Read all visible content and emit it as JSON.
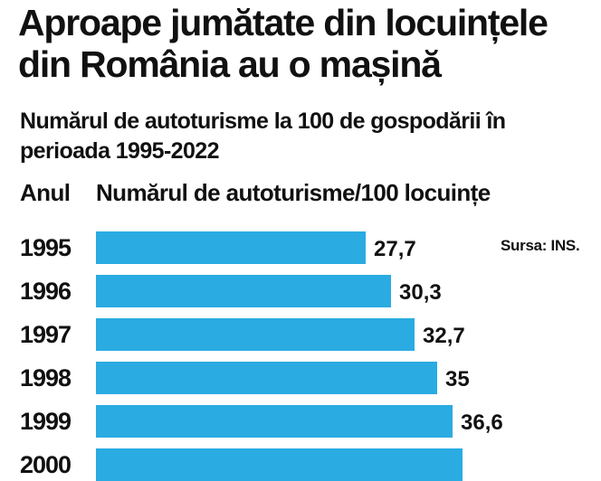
{
  "chart_data": {
    "type": "bar",
    "orientation": "horizontal",
    "title": "Aproape jumătate din locuințele din România au o mașină",
    "subtitle": "Numărul de autoturisme la 100 de gospodării în perioada 1995-2022",
    "category_header": "Anul",
    "value_header": "Numărul de autoturisme/100 locuințe",
    "source": "Sursa: INS.",
    "categories": [
      "1995",
      "1996",
      "1997",
      "1998",
      "1999",
      "2000"
    ],
    "values": [
      27.7,
      30.3,
      32.7,
      35,
      36.6,
      37.6
    ],
    "value_labels": [
      "27,7",
      "30,3",
      "32,7",
      "35",
      "36,6",
      ""
    ],
    "bar_color": "#2aabe2",
    "grid": false
  }
}
